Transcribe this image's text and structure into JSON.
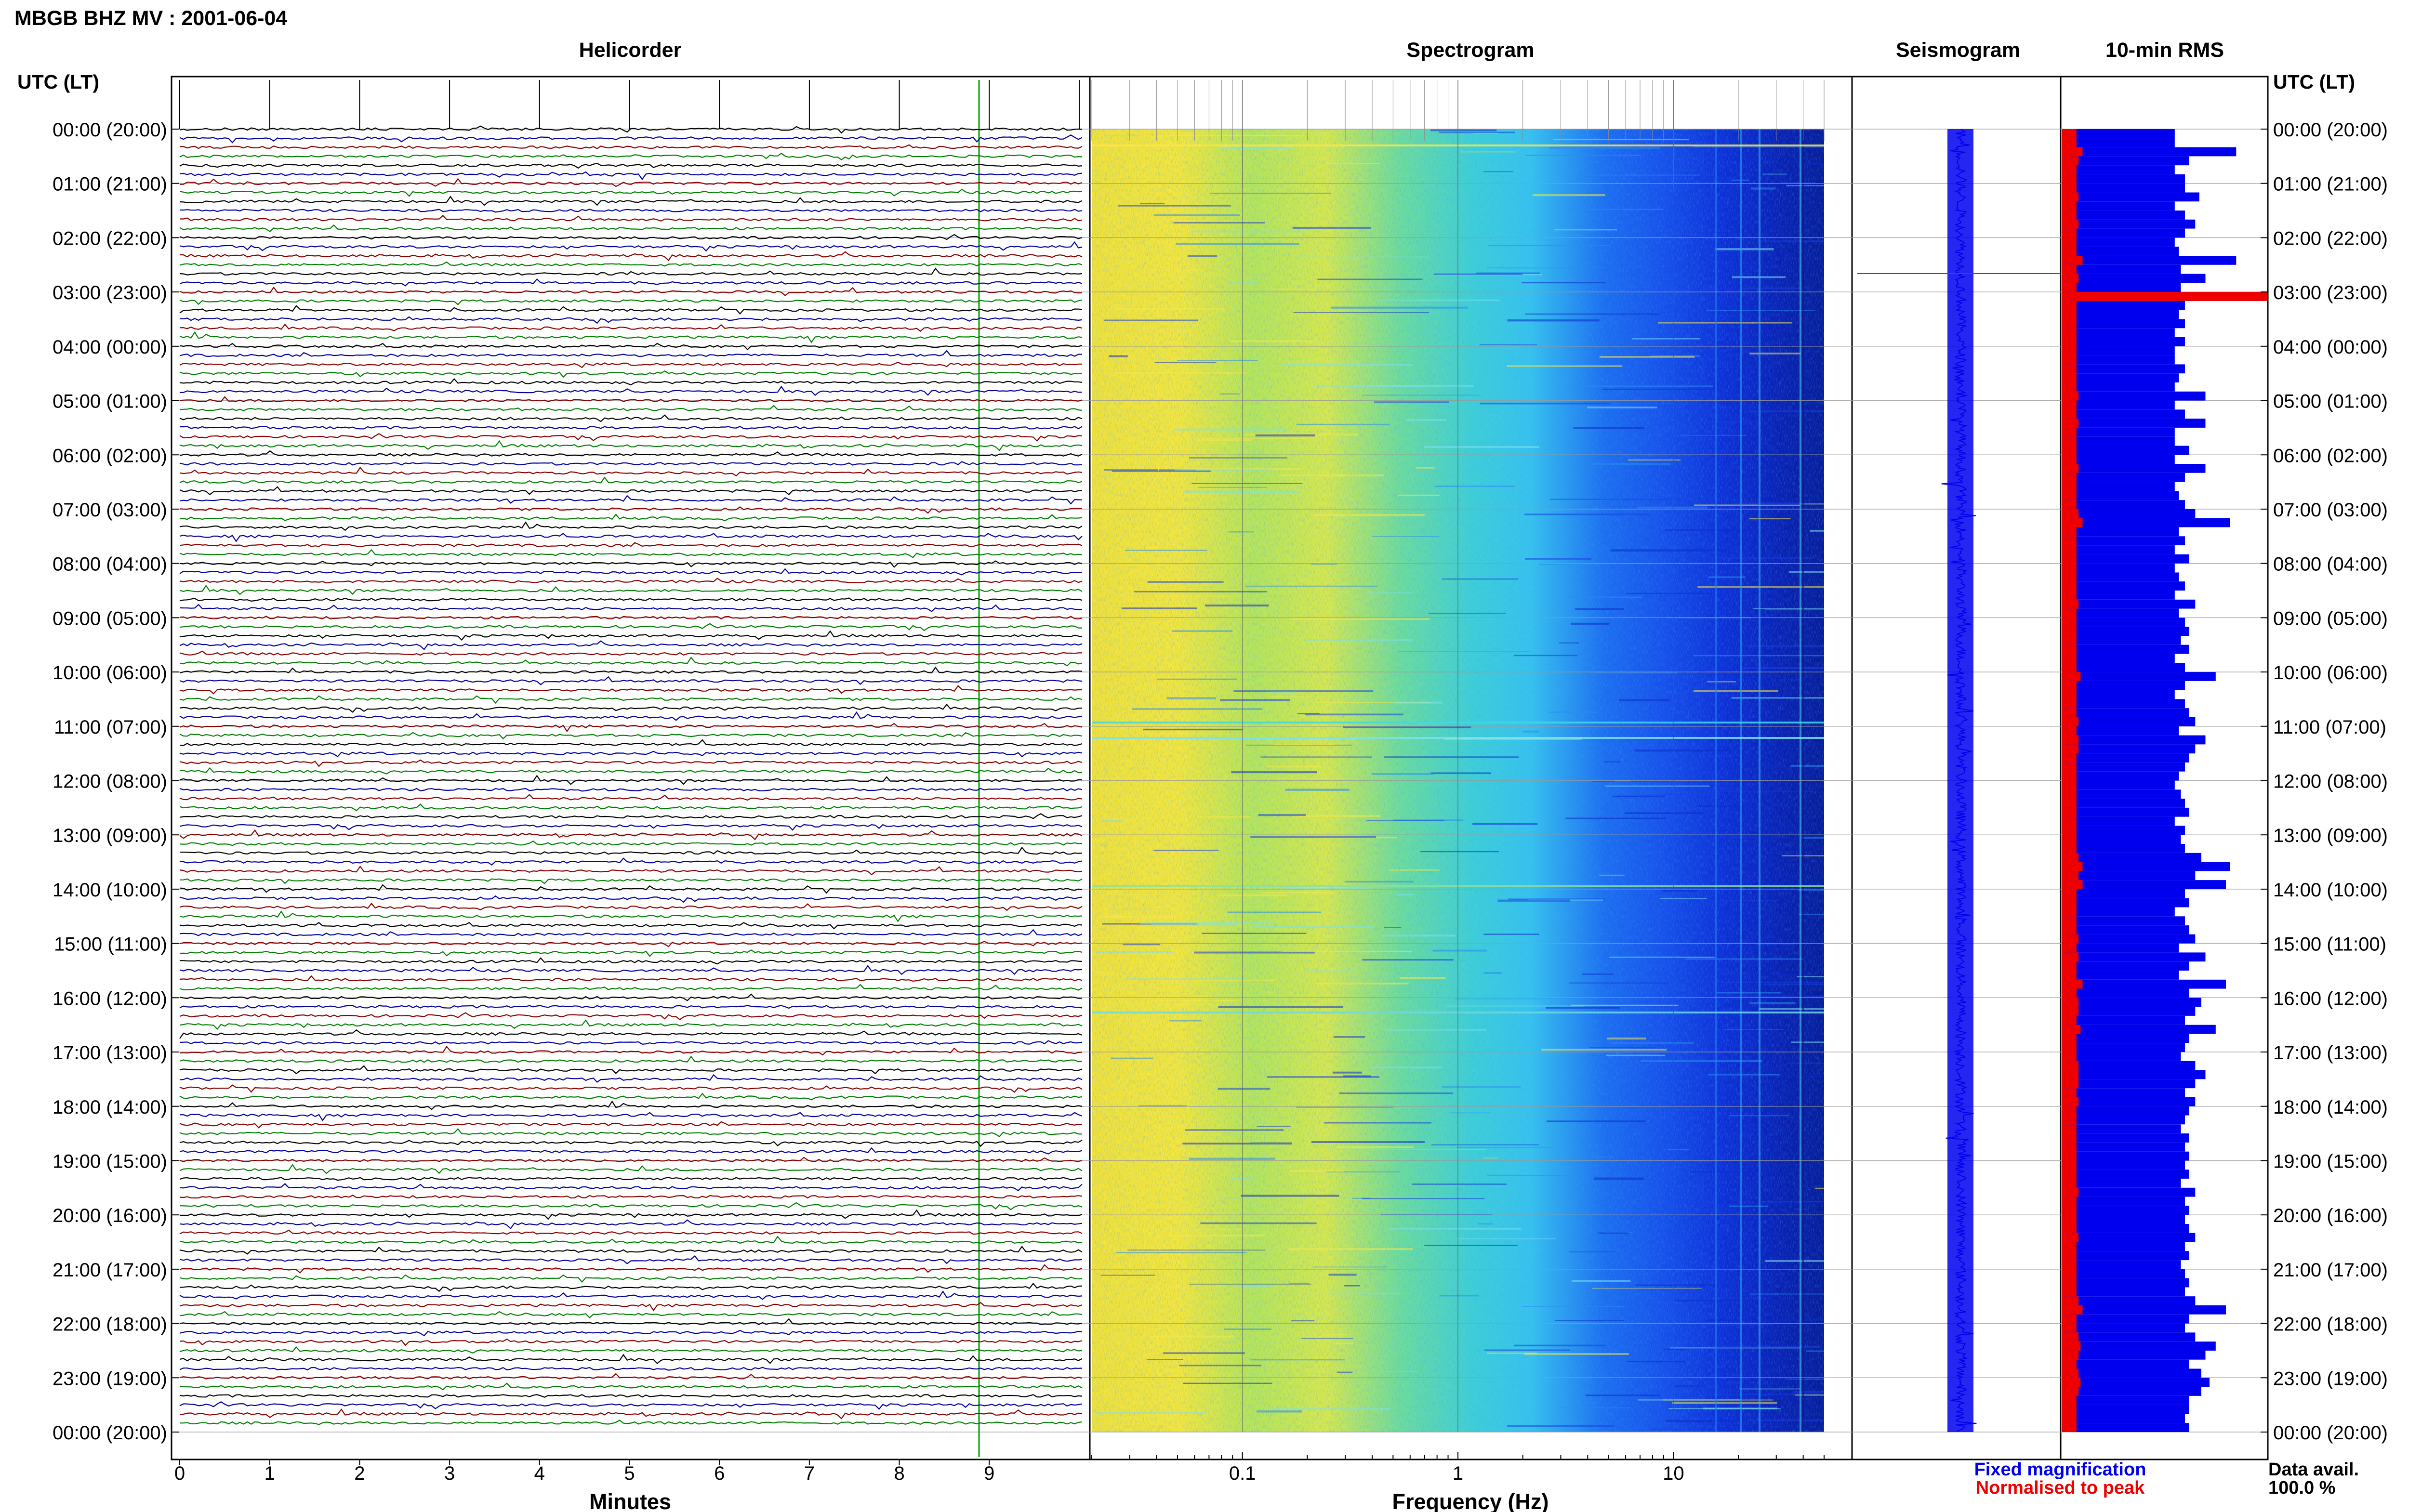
{
  "figure": {
    "title": "MBGB BHZ MV : 2001-06-04",
    "time_header": "UTC (LT)"
  },
  "panels": {
    "helicorder": "Helicorder",
    "spectrogram": "Spectrogram",
    "seismogram": "Seismogram",
    "rms": "10-min RMS"
  },
  "axes": {
    "helicorder_xlabel": "Minutes",
    "spectrogram_xlabel": "Frequency (Hz)"
  },
  "legend": {
    "fixed": "Fixed magnification",
    "normalised": "Normalised to peak",
    "fixed_color": "#0000ee",
    "normalised_color": "#ee0000"
  },
  "availability": {
    "label": "Data avail.",
    "value": "100.0 %"
  },
  "chart_data": [
    {
      "type": "line",
      "panel": "Helicorder",
      "xlabel": "Minutes",
      "ylabel": "UTC (LT)",
      "xlim": [
        0,
        10
      ],
      "x_ticks": [
        "0",
        "1",
        "2",
        "3",
        "4",
        "5",
        "6",
        "7",
        "8",
        "9"
      ],
      "time_labels": [
        "00:00 (20:00)",
        "01:00 (21:00)",
        "02:00 (22:00)",
        "03:00 (23:00)",
        "04:00 (00:00)",
        "05:00 (01:00)",
        "06:00 (02:00)",
        "07:00 (03:00)",
        "08:00 (04:00)",
        "09:00 (05:00)",
        "10:00 (06:00)",
        "11:00 (07:00)",
        "12:00 (08:00)",
        "13:00 (09:00)",
        "14:00 (10:00)",
        "15:00 (11:00)",
        "16:00 (12:00)",
        "17:00 (13:00)",
        "18:00 (14:00)",
        "19:00 (15:00)",
        "20:00 (16:00)",
        "21:00 (17:00)",
        "22:00 (18:00)",
        "23:00 (19:00)",
        "00:00 (20:00)"
      ],
      "trace_colors": [
        "#000000",
        "#0000a0",
        "#8b0000",
        "#008000"
      ],
      "lines_per_hour": 6
    },
    {
      "type": "heatmap",
      "panel": "Spectrogram",
      "xlabel": "Frequency (Hz)",
      "x_scale": "log",
      "xlim": [
        0.02,
        50
      ],
      "x_ticks": [
        "0.1",
        "1",
        "10"
      ],
      "colormap": "jet"
    },
    {
      "type": "line",
      "panel": "Seismogram",
      "color": "#0000ee"
    },
    {
      "type": "bar",
      "panel": "10-min RMS",
      "orientation": "horizontal",
      "series": [
        {
          "name": "Fixed magnification",
          "color": "#0000ee",
          "values": [
            0.55,
            0.55,
            0.85,
            0.62,
            0.55,
            0.6,
            0.6,
            0.67,
            0.55,
            0.6,
            0.65,
            0.6,
            0.55,
            0.57,
            0.85,
            0.58,
            0.7,
            0.58,
            0.98,
            0.6,
            0.57,
            0.6,
            0.55,
            0.6,
            0.55,
            0.55,
            0.6,
            0.57,
            0.55,
            0.7,
            0.55,
            0.6,
            0.7,
            0.55,
            0.55,
            0.62,
            0.55,
            0.7,
            0.6,
            0.55,
            0.57,
            0.6,
            0.65,
            0.82,
            0.57,
            0.6,
            0.55,
            0.62,
            0.55,
            0.57,
            0.6,
            0.55,
            0.65,
            0.57,
            0.6,
            0.62,
            0.58,
            0.62,
            0.55,
            0.6,
            0.75,
            0.6,
            0.55,
            0.6,
            0.62,
            0.65,
            0.57,
            0.7,
            0.65,
            0.62,
            0.6,
            0.57,
            0.55,
            0.58,
            0.6,
            0.62,
            0.55,
            0.6,
            0.58,
            0.6,
            0.68,
            0.82,
            0.65,
            0.8,
            0.6,
            0.62,
            0.55,
            0.6,
            0.62,
            0.65,
            0.57,
            0.7,
            0.62,
            0.57,
            0.8,
            0.62,
            0.68,
            0.65,
            0.6,
            0.75,
            0.62,
            0.6,
            0.58,
            0.65,
            0.7,
            0.65,
            0.6,
            0.65,
            0.62,
            0.6,
            0.58,
            0.62,
            0.6,
            0.62,
            0.6,
            0.62,
            0.58,
            0.65,
            0.6,
            0.62,
            0.6,
            0.62,
            0.65,
            0.6,
            0.62,
            0.58,
            0.6,
            0.62,
            0.6,
            0.65,
            0.8,
            0.62,
            0.6,
            0.65,
            0.75,
            0.7,
            0.62,
            0.68,
            0.72,
            0.68,
            0.62,
            0.62,
            0.6,
            0.62
          ]
        },
        {
          "name": "Normalised to peak",
          "color": "#ee0000",
          "values": [
            0.07,
            0.07,
            0.1,
            0.08,
            0.07,
            0.07,
            0.07,
            0.08,
            0.07,
            0.07,
            0.08,
            0.07,
            0.07,
            0.07,
            0.1,
            0.07,
            0.08,
            0.07,
            1.0,
            0.07,
            0.07,
            0.07,
            0.07,
            0.07,
            0.07,
            0.07,
            0.07,
            0.07,
            0.07,
            0.08,
            0.07,
            0.07,
            0.08,
            0.07,
            0.07,
            0.07,
            0.07,
            0.08,
            0.07,
            0.07,
            0.07,
            0.07,
            0.08,
            0.1,
            0.07,
            0.07,
            0.07,
            0.07,
            0.07,
            0.07,
            0.07,
            0.07,
            0.08,
            0.07,
            0.07,
            0.07,
            0.07,
            0.07,
            0.07,
            0.07,
            0.09,
            0.07,
            0.07,
            0.07,
            0.07,
            0.08,
            0.07,
            0.08,
            0.08,
            0.07,
            0.07,
            0.07,
            0.07,
            0.07,
            0.07,
            0.07,
            0.07,
            0.07,
            0.07,
            0.07,
            0.08,
            0.1,
            0.08,
            0.1,
            0.07,
            0.07,
            0.07,
            0.07,
            0.07,
            0.08,
            0.07,
            0.08,
            0.07,
            0.07,
            0.1,
            0.07,
            0.08,
            0.08,
            0.07,
            0.09,
            0.07,
            0.07,
            0.07,
            0.08,
            0.08,
            0.08,
            0.07,
            0.08,
            0.07,
            0.07,
            0.07,
            0.07,
            0.07,
            0.07,
            0.07,
            0.07,
            0.07,
            0.08,
            0.07,
            0.07,
            0.07,
            0.07,
            0.08,
            0.07,
            0.07,
            0.07,
            0.07,
            0.07,
            0.07,
            0.08,
            0.1,
            0.07,
            0.07,
            0.08,
            0.09,
            0.08,
            0.07,
            0.08,
            0.09,
            0.08,
            0.07,
            0.07,
            0.07,
            0.07
          ]
        }
      ]
    }
  ]
}
